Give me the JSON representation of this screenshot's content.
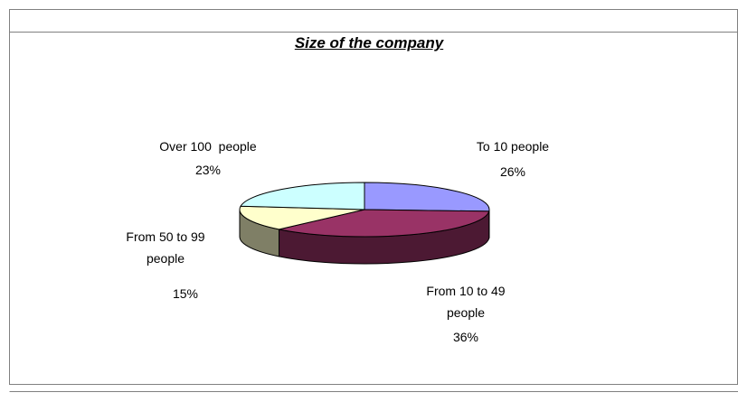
{
  "chart_data": {
    "type": "pie",
    "title": "Size of the company",
    "categories": [
      "To 10 people",
      "From 10 to 49 people",
      "From 50 to 99 people",
      "Over 100  people"
    ],
    "values": [
      26,
      36,
      15,
      23
    ],
    "value_labels": [
      "26%",
      "36%",
      "15%",
      "23%"
    ],
    "colors": [
      "#9999ff",
      "#993366",
      "#ffffcc",
      "#ccffff"
    ]
  }
}
